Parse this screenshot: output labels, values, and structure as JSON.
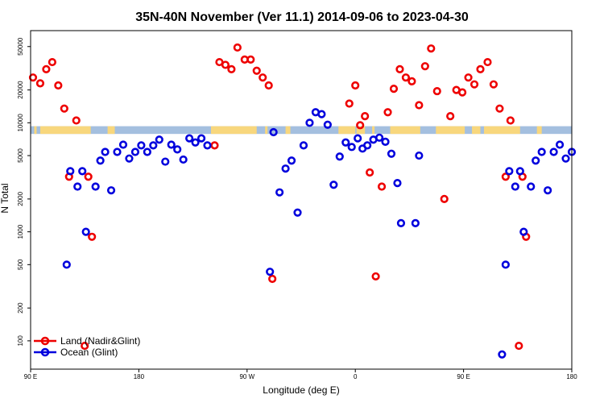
{
  "chart_data": {
    "type": "scatter",
    "title": "35N-40N November (Ver 11.1)   2014-09-06 to 2023-04-30",
    "xlabel": "Longitude (deg E)",
    "ylabel": "N Total",
    "x_axis": {
      "min_deg": 90,
      "span_deg": 450,
      "ticks": [
        {
          "value": 90,
          "label": "90 E"
        },
        {
          "value": 180,
          "label": "180"
        },
        {
          "value": 270,
          "label": "90 W"
        },
        {
          "value": 360,
          "label": "0"
        },
        {
          "value": 450,
          "label": "90 E"
        },
        {
          "value": 540,
          "label": "180"
        }
      ]
    },
    "y_axis": {
      "scale": "log",
      "ylim": [
        55,
        70000
      ],
      "ticks": [
        {
          "value": 100,
          "label": "100"
        },
        {
          "value": 200,
          "label": "200"
        },
        {
          "value": 500,
          "label": "500"
        },
        {
          "value": 1000,
          "label": "1000"
        },
        {
          "value": 2000,
          "label": "2000"
        },
        {
          "value": 5000,
          "label": "5000"
        },
        {
          "value": 10000,
          "label": "10000"
        },
        {
          "value": 20000,
          "label": "20000"
        },
        {
          "value": 50000,
          "label": "50000"
        }
      ]
    },
    "land_strip": {
      "y_low": 7900,
      "y_high": 9300,
      "ocean_color": "#a4bfdf",
      "land_color": "#f8d77d",
      "land_ranges": [
        [
          93,
          95
        ],
        [
          98,
          140
        ],
        [
          154,
          160
        ],
        [
          240,
          278
        ],
        [
          285,
          287
        ],
        [
          302,
          306
        ],
        [
          346,
          360
        ],
        [
          361,
          368
        ],
        [
          374,
          376
        ],
        [
          389,
          414
        ],
        [
          427,
          451
        ],
        [
          457,
          464
        ],
        [
          467,
          497
        ],
        [
          511,
          515
        ]
      ]
    },
    "legend": {
      "position": "bottom-left",
      "entries": [
        {
          "label": "Land (Nadir&Glint)",
          "color": "#ee0000"
        },
        {
          "label": "Ocean (Glint)",
          "color": "#0000dd"
        }
      ]
    },
    "series": [
      {
        "name": "Land (Nadir&Glint)",
        "color": "#ee0000",
        "points": [
          [
            92,
            26000
          ],
          [
            98,
            23000
          ],
          [
            103,
            31000
          ],
          [
            108,
            36000
          ],
          [
            113,
            22000
          ],
          [
            118,
            13500
          ],
          [
            122,
            3200
          ],
          [
            128,
            10500
          ],
          [
            135,
            90
          ],
          [
            138,
            3200
          ],
          [
            141,
            900
          ],
          [
            243,
            6200
          ],
          [
            247,
            36000
          ],
          [
            252,
            34000
          ],
          [
            257,
            31000
          ],
          [
            262,
            49000
          ],
          [
            268,
            38000
          ],
          [
            273,
            38000
          ],
          [
            278,
            30000
          ],
          [
            283,
            26000
          ],
          [
            288,
            22000
          ],
          [
            291,
            370
          ],
          [
            355,
            15000
          ],
          [
            360,
            22000
          ],
          [
            364,
            9500
          ],
          [
            368,
            11500
          ],
          [
            372,
            3500
          ],
          [
            377,
            390
          ],
          [
            382,
            2600
          ],
          [
            387,
            12500
          ],
          [
            392,
            20500
          ],
          [
            397,
            31000
          ],
          [
            402,
            26000
          ],
          [
            407,
            24000
          ],
          [
            413,
            14500
          ],
          [
            418,
            33000
          ],
          [
            423,
            48000
          ],
          [
            428,
            19500
          ],
          [
            434,
            2000
          ],
          [
            439,
            11500
          ],
          [
            444,
            20000
          ],
          [
            449,
            19000
          ],
          [
            454,
            26000
          ],
          [
            459,
            22500
          ],
          [
            464,
            31000
          ],
          [
            470,
            36000
          ],
          [
            475,
            22500
          ],
          [
            480,
            13500
          ],
          [
            485,
            3200
          ],
          [
            489,
            10500
          ],
          [
            496,
            90
          ],
          [
            499,
            3200
          ],
          [
            502,
            900
          ]
        ]
      },
      {
        "name": "Ocean (Glint)",
        "color": "#0000dd",
        "points": [
          [
            120,
            500
          ],
          [
            123,
            3600
          ],
          [
            129,
            2600
          ],
          [
            133,
            3600
          ],
          [
            136,
            1000
          ],
          [
            144,
            2600
          ],
          [
            148,
            4500
          ],
          [
            152,
            5400
          ],
          [
            157,
            2400
          ],
          [
            162,
            5400
          ],
          [
            167,
            6300
          ],
          [
            172,
            4700
          ],
          [
            177,
            5400
          ],
          [
            182,
            6200
          ],
          [
            187,
            5400
          ],
          [
            192,
            6200
          ],
          [
            197,
            7000
          ],
          [
            202,
            4400
          ],
          [
            207,
            6300
          ],
          [
            212,
            5700
          ],
          [
            217,
            4600
          ],
          [
            222,
            7200
          ],
          [
            227,
            6600
          ],
          [
            232,
            7200
          ],
          [
            237,
            6200
          ],
          [
            289,
            430
          ],
          [
            292,
            8200
          ],
          [
            297,
            2300
          ],
          [
            302,
            3800
          ],
          [
            307,
            4500
          ],
          [
            312,
            1500
          ],
          [
            317,
            6200
          ],
          [
            322,
            10000
          ],
          [
            327,
            12500
          ],
          [
            332,
            12000
          ],
          [
            337,
            9600
          ],
          [
            342,
            2700
          ],
          [
            347,
            4900
          ],
          [
            352,
            6600
          ],
          [
            357,
            6000
          ],
          [
            362,
            7200
          ],
          [
            366,
            5800
          ],
          [
            370,
            6200
          ],
          [
            375,
            7000
          ],
          [
            380,
            7300
          ],
          [
            385,
            6700
          ],
          [
            390,
            5200
          ],
          [
            395,
            2800
          ],
          [
            398,
            1200
          ],
          [
            410,
            1200
          ],
          [
            413,
            5000
          ],
          [
            482,
            75
          ],
          [
            485,
            500
          ],
          [
            488,
            3600
          ],
          [
            493,
            2600
          ],
          [
            497,
            3600
          ],
          [
            500,
            1000
          ],
          [
            506,
            2600
          ],
          [
            510,
            4500
          ],
          [
            515,
            5400
          ],
          [
            520,
            2400
          ],
          [
            525,
            5400
          ],
          [
            530,
            6300
          ],
          [
            535,
            4700
          ],
          [
            540,
            5400
          ]
        ]
      }
    ]
  }
}
